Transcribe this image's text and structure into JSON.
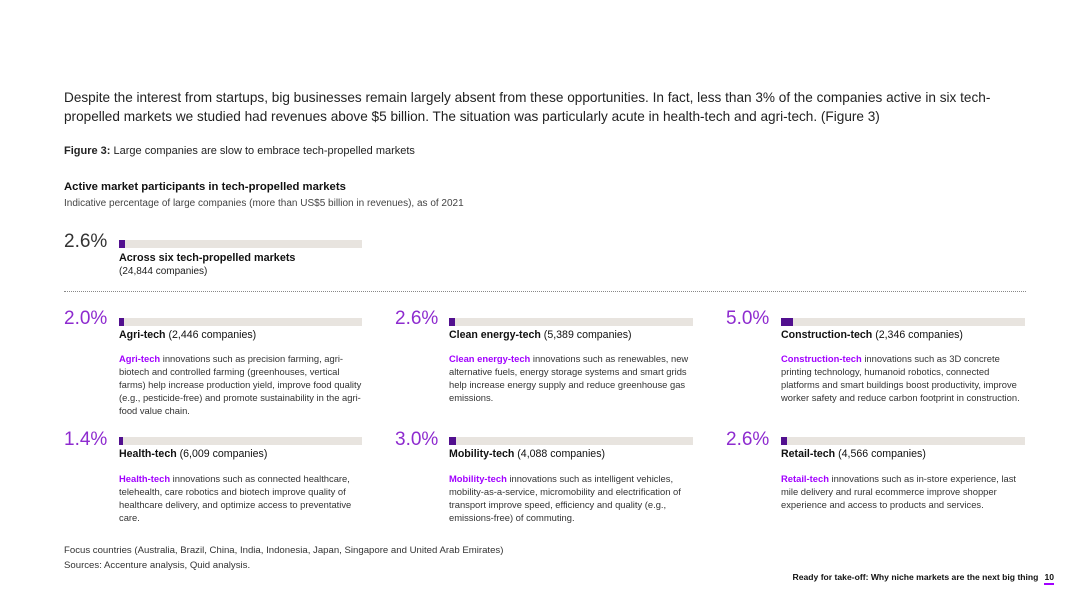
{
  "intro_text": "Despite the interest from startups, big businesses remain largely absent from these opportunities. In fact, less than 3% of the companies active in six tech-propelled markets we studied had revenues above $5 billion. The situation was particularly acute in health-tech and agri-tech. (Figure 3)",
  "figure": {
    "label": "Figure 3:",
    "caption": " Large companies are slow to embrace tech-propelled markets"
  },
  "colors": {
    "accent_text": "#a100ff",
    "percent": "#8e2bcf",
    "bar_fill": "#52108f",
    "bar_track": "#e8e4df"
  },
  "chart_data": {
    "type": "bar",
    "title": "Active market participants in tech-propelled markets",
    "subtitle": "Indicative percentage of large companies (more than US$5 billion in revenues), as of 2021",
    "ylim": [
      0,
      100
    ],
    "overall": {
      "name": "Across six tech-propelled markets",
      "count": "(24,844 companies)",
      "value": 2.6,
      "label": "2.6%"
    },
    "categories": [
      "Agri-tech",
      "Clean energy-tech",
      "Construction-tech",
      "Health-tech",
      "Mobility-tech",
      "Retail-tech"
    ],
    "values": [
      2.0,
      2.6,
      5.0,
      1.4,
      3.0,
      2.6
    ],
    "markets": [
      {
        "name": "Agri-tech",
        "count": "(2,446 companies)",
        "value": 2.0,
        "label": "2.0%",
        "desc_lead": "Agri-tech",
        "desc_rest": " innovations such as precision farming, agri-biotech and controlled farming (greenhouses, vertical farms) help increase production yield, improve food quality (e.g., pesticide-free) and promote sustainability in the agri-food value chain."
      },
      {
        "name": "Clean energy-tech",
        "count": "(5,389 companies)",
        "value": 2.6,
        "label": "2.6%",
        "desc_lead": "Clean energy-tech",
        "desc_rest": " innovations such as renewables, new alternative fuels, energy storage systems and smart grids help increase energy supply and reduce greenhouse gas emissions."
      },
      {
        "name": "Construction-tech",
        "count": "(2,346 companies)",
        "value": 5.0,
        "label": "5.0%",
        "desc_lead": "Construction-tech",
        "desc_rest": " innovations such as 3D concrete printing technology, humanoid robotics, connected platforms and smart buildings boost productivity, improve worker safety and reduce carbon footprint in construction."
      },
      {
        "name": "Health-tech",
        "count": "(6,009 companies)",
        "value": 1.4,
        "label": "1.4%",
        "desc_lead": "Health-tech",
        "desc_rest": " innovations such as connected healthcare, telehealth, care robotics and biotech improve quality of healthcare delivery, and optimize access to preventative care."
      },
      {
        "name": "Mobility-tech",
        "count": "(4,088 companies)",
        "value": 3.0,
        "label": "3.0%",
        "desc_lead": "Mobility-tech",
        "desc_rest": " innovations such as intelligent vehicles, mobility-as-a-service, micromobility and electrification of transport improve speed, efficiency and quality (e.g., emissions-free) of commuting."
      },
      {
        "name": "Retail-tech",
        "count": "(4,566 companies)",
        "value": 2.6,
        "label": "2.6%",
        "desc_lead": "Retail-tech",
        "desc_rest": " innovations such as in-store experience, last mile delivery and rural ecommerce improve shopper experience and access to products and services."
      }
    ]
  },
  "notes": {
    "focus": "Focus countries (Australia, Brazil, China, India, Indonesia, Japan, Singapore and United Arab Emirates)",
    "sources": "Sources: Accenture analysis, Quid analysis."
  },
  "footer": {
    "text": "Ready for take-off: Why niche markets are the next big thing",
    "page": "10"
  }
}
